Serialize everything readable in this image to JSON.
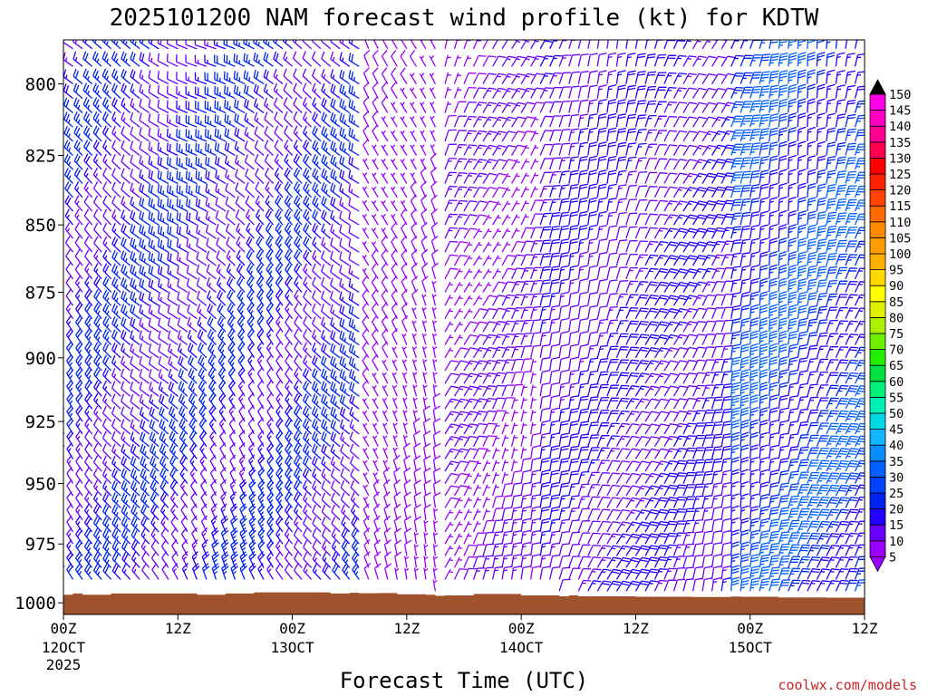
{
  "chart_data": {
    "type": "wind_barb_time_height",
    "title": "2025101200 NAM forecast wind profile (kt) for KDTW",
    "xlabel": "Forecast Time (UTC)",
    "ylabel": "",
    "credit": "coolwx.com/models",
    "time_range_hours": [
      0,
      84
    ],
    "pressure_range_hpa": [
      785,
      1005
    ],
    "y_ticks": [
      {
        "p": 800,
        "label": "800"
      },
      {
        "p": 825,
        "label": "825"
      },
      {
        "p": 850,
        "label": "850"
      },
      {
        "p": 875,
        "label": "875"
      },
      {
        "p": 900,
        "label": "900"
      },
      {
        "p": 925,
        "label": "925"
      },
      {
        "p": 950,
        "label": "950"
      },
      {
        "p": 975,
        "label": "975"
      },
      {
        "p": 1000,
        "label": "1000"
      }
    ],
    "x_ticks": [
      {
        "h": 0,
        "label": "00Z",
        "sub": "12OCT",
        "sub2": "2025"
      },
      {
        "h": 12,
        "label": "12Z",
        "sub": "",
        "sub2": ""
      },
      {
        "h": 24,
        "label": "00Z",
        "sub": "13OCT",
        "sub2": ""
      },
      {
        "h": 36,
        "label": "12Z",
        "sub": "",
        "sub2": ""
      },
      {
        "h": 48,
        "label": "00Z",
        "sub": "14OCT",
        "sub2": ""
      },
      {
        "h": 60,
        "label": "12Z",
        "sub": "",
        "sub2": ""
      },
      {
        "h": 72,
        "label": "00Z",
        "sub": "15OCT",
        "sub2": ""
      },
      {
        "h": 84,
        "label": "12Z",
        "sub": "",
        "sub2": ""
      }
    ],
    "levels_hpa": [
      788,
      794,
      800,
      805,
      810,
      815,
      820,
      825,
      830,
      835,
      840,
      845,
      850,
      855,
      860,
      865,
      870,
      875,
      880,
      885,
      890,
      895,
      900,
      905,
      910,
      915,
      920,
      925,
      930,
      935,
      940,
      945,
      950,
      955,
      960,
      965,
      970,
      975,
      980,
      985,
      990,
      995
    ],
    "time_step_hours": 1,
    "wind_regimes": [
      {
        "hours": [
          0,
          32
        ],
        "dir_deg_upper": 300,
        "dir_deg_lower": 330,
        "speed_kt_range": [
          10,
          25
        ]
      },
      {
        "hours": [
          32,
          40
        ],
        "dir_deg": 340,
        "speed_kt_range": [
          5,
          10
        ]
      },
      {
        "hours": [
          40,
          50
        ],
        "dir_deg": 20,
        "speed_kt_range": [
          5,
          15
        ]
      },
      {
        "hours": [
          50,
          70
        ],
        "dir_deg": 20,
        "speed_kt_range": [
          10,
          20
        ]
      },
      {
        "hours": [
          70,
          84
        ],
        "dir_deg": 15,
        "speed_kt_range": [
          15,
          35
        ]
      }
    ],
    "surface_pressure_hpa": [
      {
        "h": 0,
        "p": 996.5
      },
      {
        "h": 1,
        "p": 996
      },
      {
        "h": 2,
        "p": 996.5
      },
      {
        "h": 5,
        "p": 996
      },
      {
        "h": 14,
        "p": 996.5
      },
      {
        "h": 17,
        "p": 996
      },
      {
        "h": 20,
        "p": 995.5
      },
      {
        "h": 26,
        "p": 995.5
      },
      {
        "h": 28,
        "p": 996
      },
      {
        "h": 30,
        "p": 995.7
      },
      {
        "h": 31,
        "p": 995.9
      },
      {
        "h": 33,
        "p": 995.8
      },
      {
        "h": 35,
        "p": 996.3
      },
      {
        "h": 38,
        "p": 996.5
      },
      {
        "h": 39,
        "p": 997
      },
      {
        "h": 40,
        "p": 996.8
      },
      {
        "h": 43,
        "p": 996.2
      },
      {
        "h": 48,
        "p": 996.8
      },
      {
        "h": 52,
        "p": 997.2
      },
      {
        "h": 53,
        "p": 996.8
      },
      {
        "h": 54,
        "p": 997.2
      },
      {
        "h": 60,
        "p": 997.4
      },
      {
        "h": 66,
        "p": 997.5
      },
      {
        "h": 70,
        "p": 997.3
      },
      {
        "h": 71,
        "p": 997.4
      },
      {
        "h": 75,
        "p": 997.7
      },
      {
        "h": 80,
        "p": 997.8
      },
      {
        "h": 84,
        "p": 998.5
      }
    ],
    "colorbar": {
      "units": "kt",
      "levels": [
        5,
        10,
        15,
        20,
        25,
        30,
        35,
        40,
        45,
        50,
        55,
        60,
        65,
        70,
        75,
        80,
        85,
        90,
        95,
        100,
        105,
        110,
        115,
        120,
        125,
        130,
        135,
        140,
        145,
        150
      ],
      "colors": [
        "#9900ff",
        "#6a00ff",
        "#2200ff",
        "#0022ee",
        "#0040ff",
        "#0060ff",
        "#0a8cff",
        "#14b4ff",
        "#00d8e8",
        "#00f0b4",
        "#00f07a",
        "#00e040",
        "#22ee00",
        "#6ef000",
        "#aaf000",
        "#e0f000",
        "#ffff00",
        "#ffd800",
        "#ffb000",
        "#ff9c00",
        "#ff8a00",
        "#ff6a00",
        "#ff4400",
        "#ff2200",
        "#ff0000",
        "#ff0050",
        "#ff0090",
        "#ff00c0",
        "#ff00e6",
        "#ff44ff"
      ],
      "over_color": "#000000",
      "under_color": "#9900ff"
    }
  }
}
